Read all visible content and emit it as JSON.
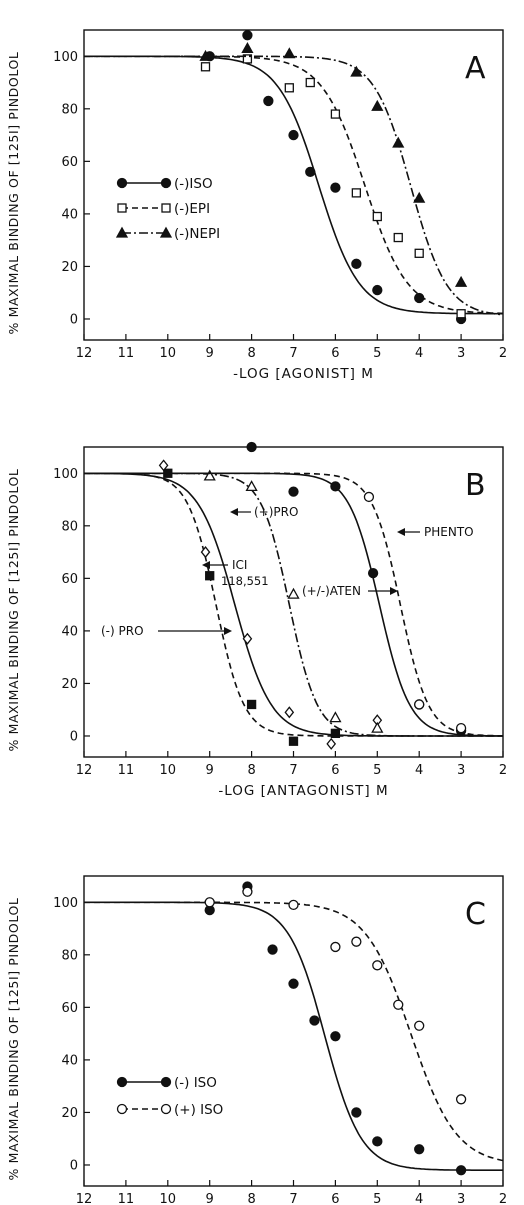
{
  "chart_data": [
    {
      "type": "line",
      "panel_label": "A",
      "xlabel": "-LOG [AGONIST] M",
      "ylabel": "% MAXIMAL BINDING OF [125I] PINDOLOL",
      "xlim": [
        12,
        2
      ],
      "ylim": [
        -8,
        110
      ],
      "x_ticks": [
        "12",
        "11",
        "10",
        "9",
        "8",
        "7",
        "6",
        "5",
        "4",
        "3",
        "2"
      ],
      "y_ticks": [
        "0",
        "20",
        "40",
        "60",
        "80",
        "100"
      ],
      "legend_position": "center-left",
      "series": [
        {
          "name": "(-)ISO",
          "marker": "circle-filled",
          "dash": "solid",
          "curve": {
            "top": 100,
            "bottom": 2,
            "ic50": 6.4,
            "slope": 0.9
          },
          "points": [
            [
              9,
              100
            ],
            [
              8.1,
              108
            ],
            [
              7.6,
              83
            ],
            [
              7,
              70
            ],
            [
              6.6,
              56
            ],
            [
              6,
              50
            ],
            [
              5.5,
              21
            ],
            [
              5,
              11
            ],
            [
              4,
              8
            ],
            [
              3,
              0
            ]
          ]
        },
        {
          "name": "(-)EPI",
          "marker": "square-open",
          "dash": "dashed",
          "curve": {
            "top": 100,
            "bottom": 2,
            "ic50": 5.3,
            "slope": 0.85
          },
          "points": [
            [
              9.1,
              96
            ],
            [
              8.1,
              99
            ],
            [
              7.1,
              88
            ],
            [
              6.6,
              90
            ],
            [
              6,
              78
            ],
            [
              5.5,
              48
            ],
            [
              5,
              39
            ],
            [
              4.5,
              31
            ],
            [
              4,
              25
            ],
            [
              3,
              2
            ]
          ]
        },
        {
          "name": "(-)NEPI",
          "marker": "triangle-filled",
          "dash": "dashdot",
          "curve": {
            "top": 100,
            "bottom": 1,
            "ic50": 4.2,
            "slope": 1.0
          },
          "points": [
            [
              9.1,
              100
            ],
            [
              8.1,
              103
            ],
            [
              7.1,
              101
            ],
            [
              5.5,
              94
            ],
            [
              5,
              81
            ],
            [
              4.5,
              67
            ],
            [
              4,
              46
            ],
            [
              3,
              14
            ]
          ]
        }
      ]
    },
    {
      "type": "line",
      "panel_label": "B",
      "xlabel": "-LOG [ANTAGONIST] M",
      "ylabel": "% MAXIMAL BINDING OF [125I] PINDOLOL",
      "xlim": [
        12,
        2
      ],
      "ylim": [
        -8,
        110
      ],
      "x_ticks": [
        "12",
        "11",
        "10",
        "9",
        "8",
        "7",
        "6",
        "5",
        "4",
        "3",
        "2"
      ],
      "y_ticks": [
        "0",
        "20",
        "40",
        "60",
        "80",
        "100"
      ],
      "annotations": [
        "(-) PRO",
        "ICI 118,551",
        "(+)PRO",
        "(+/-)ATEN",
        "PHENTO"
      ],
      "series": [
        {
          "name": "(-) PRO",
          "marker": "square-filled",
          "dash": "dashed",
          "curve": {
            "top": 100,
            "bottom": 0,
            "ic50": 8.85,
            "slope": 1.3
          },
          "points": [
            [
              10,
              100
            ],
            [
              9,
              61
            ],
            [
              8,
              12
            ],
            [
              7,
              -2
            ],
            [
              6,
              1
            ]
          ]
        },
        {
          "name": "ICI 118,551",
          "marker": "diamond-open",
          "dash": "solid",
          "curve": {
            "top": 100,
            "bottom": 0,
            "ic50": 8.4,
            "slope": 1.0
          },
          "points": [
            [
              10.1,
              103
            ],
            [
              9.1,
              70
            ],
            [
              8.1,
              37
            ],
            [
              7.1,
              9
            ],
            [
              6.1,
              -3
            ],
            [
              5,
              6
            ]
          ]
        },
        {
          "name": "(+)PRO",
          "marker": "triangle-open",
          "dash": "dashdot",
          "curve": {
            "top": 100,
            "bottom": 0,
            "ic50": 7.1,
            "slope": 1.3
          },
          "points": [
            [
              9,
              99
            ],
            [
              8,
              95
            ],
            [
              7,
              54
            ],
            [
              6,
              7
            ],
            [
              5,
              3
            ]
          ]
        },
        {
          "name": "(+/-)ATEN",
          "marker": "circle-filled",
          "dash": "solid",
          "curve": {
            "top": 100,
            "bottom": 0,
            "ic50": 4.95,
            "slope": 1.2
          },
          "points": [
            [
              8,
              110
            ],
            [
              7,
              93
            ],
            [
              6,
              95
            ],
            [
              5.1,
              62
            ],
            [
              4,
              12
            ],
            [
              3,
              2
            ]
          ]
        },
        {
          "name": "PHENTO",
          "marker": "circle-open",
          "dash": "dashed",
          "curve": {
            "top": 100,
            "bottom": 0,
            "ic50": 4.45,
            "slope": 1.3
          },
          "points": [
            [
              5.2,
              91
            ],
            [
              4,
              12
            ],
            [
              3,
              3
            ]
          ]
        }
      ]
    },
    {
      "type": "line",
      "panel_label": "C",
      "xlabel": "-LOG [ISOPROTERENOL] M",
      "ylabel": "% MAXIMAL BINDING OF [125I] PINDOLOL",
      "xlim": [
        12,
        2
      ],
      "ylim": [
        -8,
        110
      ],
      "x_ticks": [
        "12",
        "11",
        "10",
        "9",
        "8",
        "7",
        "6",
        "5",
        "4",
        "3",
        "2"
      ],
      "y_ticks": [
        "0",
        "20",
        "40",
        "60",
        "80",
        "100"
      ],
      "legend_position": "bottom-left",
      "series": [
        {
          "name": "(-) ISO",
          "marker": "circle-filled",
          "dash": "solid",
          "curve": {
            "top": 100,
            "bottom": -2,
            "ic50": 6.25,
            "slope": 1.0
          },
          "points": [
            [
              9,
              97
            ],
            [
              8.1,
              106
            ],
            [
              7.5,
              82
            ],
            [
              7,
              69
            ],
            [
              6.5,
              55
            ],
            [
              6,
              49
            ],
            [
              5.5,
              20
            ],
            [
              5,
              9
            ],
            [
              4,
              6
            ],
            [
              3,
              -2
            ]
          ]
        },
        {
          "name": "(+) ISO",
          "marker": "circle-open",
          "dash": "dashed",
          "curve": {
            "top": 100,
            "bottom": 0,
            "ic50": 4.2,
            "slope": 0.8
          },
          "points": [
            [
              9,
              100
            ],
            [
              8.1,
              104
            ],
            [
              7,
              99
            ],
            [
              6,
              83
            ],
            [
              5.5,
              85
            ],
            [
              5,
              76
            ],
            [
              4.5,
              61
            ],
            [
              4,
              53
            ],
            [
              3,
              25
            ]
          ]
        }
      ]
    }
  ]
}
